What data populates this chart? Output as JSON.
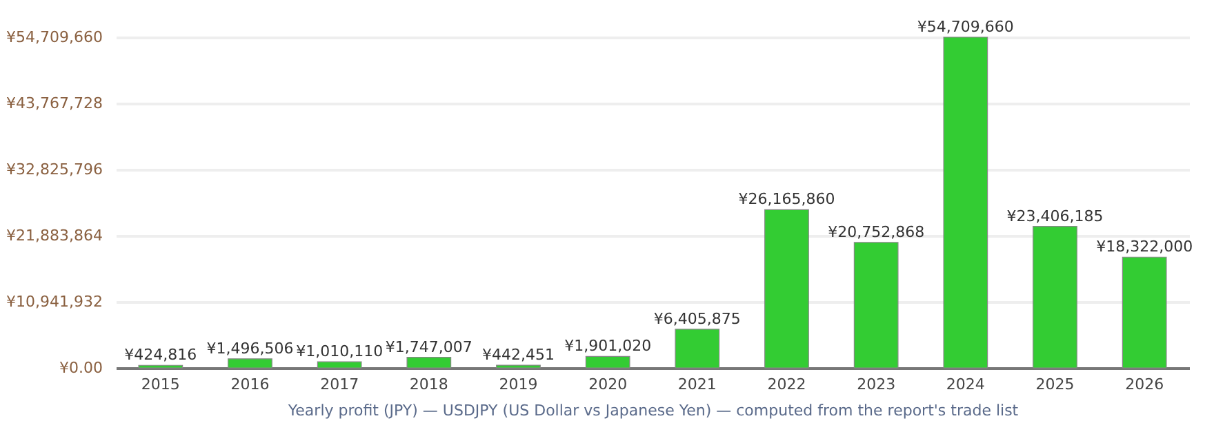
{
  "chart_data": {
    "type": "bar",
    "xlabel": "Yearly profit (JPY) — USDJPY (US Dollar vs Japanese Yen) — computed from the report's trade list",
    "categories": [
      "2015",
      "2016",
      "2017",
      "2018",
      "2019",
      "2020",
      "2021",
      "2022",
      "2023",
      "2024",
      "2025",
      "2026"
    ],
    "values": [
      424816,
      1496506,
      1010110,
      1747007,
      442451,
      1901020,
      6405875,
      26165860,
      20752868,
      54709660,
      23406185,
      18322000
    ],
    "value_labels": [
      "¥424,816",
      "¥1,496,506",
      "¥1,010,110",
      "¥1,747,007",
      "¥442,451",
      "¥1,901,020",
      "¥6,405,875",
      "¥26,165,860",
      "¥20,752,868",
      "¥54,709,660",
      "¥23,406,185",
      "¥18,322,000"
    ],
    "color": "#33cc33",
    "ylim": [
      0,
      54709660
    ],
    "yticks": [
      {
        "value": 0,
        "label": "¥0.00"
      },
      {
        "value": 10941932,
        "label": "¥10,941,932"
      },
      {
        "value": 21883864,
        "label": "¥21,883,864"
      },
      {
        "value": 32825796,
        "label": "¥32,825,796"
      },
      {
        "value": 43767728,
        "label": "¥43,767,728"
      },
      {
        "value": 54709660,
        "label": "¥54,709,660"
      }
    ],
    "grid": "y"
  }
}
